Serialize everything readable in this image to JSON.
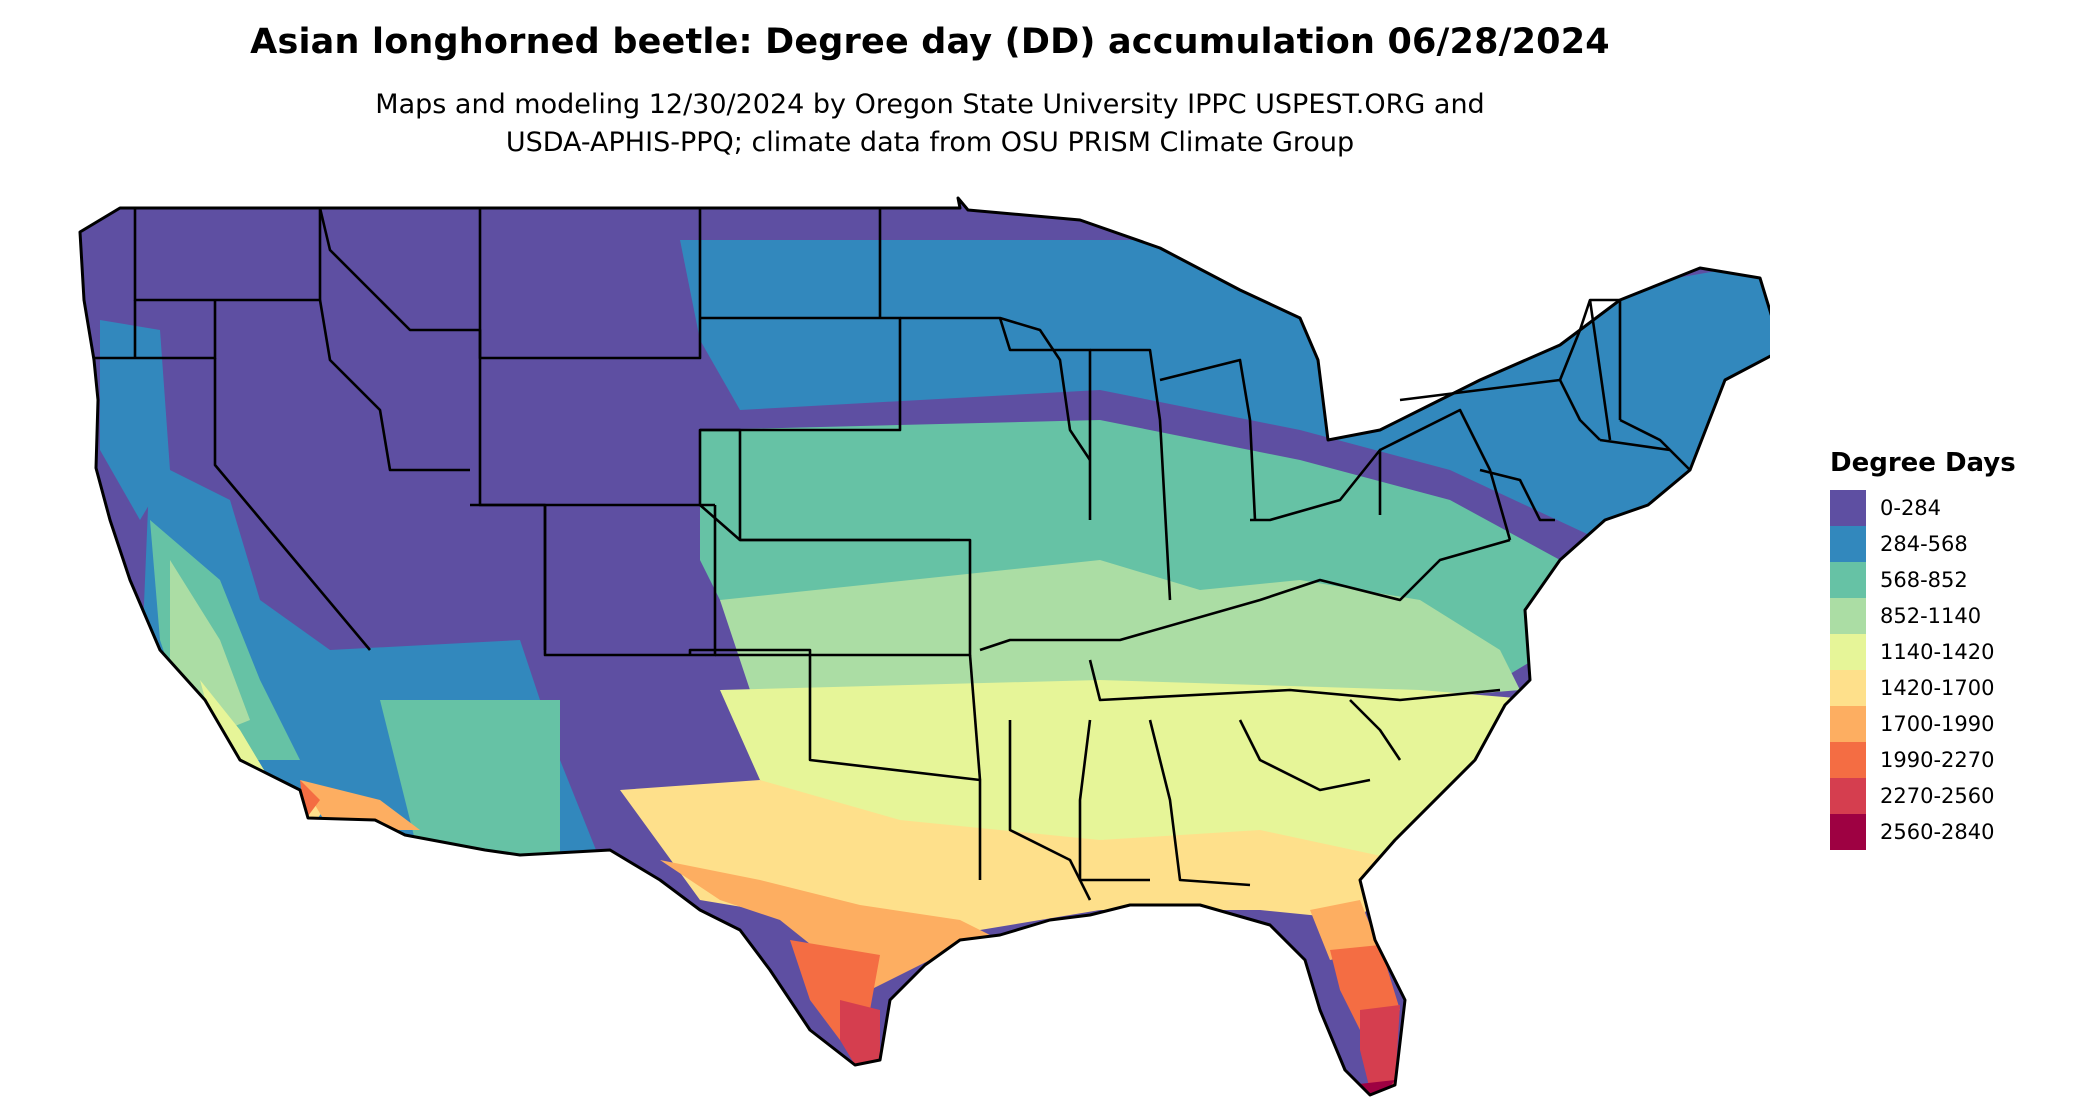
{
  "title": "Asian longhorned beetle: Degree day (DD) accumulation 06/28/2024",
  "subtitle_lines": [
    "Maps and modeling 12/30/2024 by Oregon State University IPPC USPEST.ORG and",
    "USDA-APHIS-PPQ; climate data from OSU PRISM Climate Group"
  ],
  "legend": {
    "title": "Degree Days",
    "items": [
      {
        "label": "0-284",
        "color": "#5e4fa2"
      },
      {
        "label": "284-568",
        "color": "#3288bd"
      },
      {
        "label": "568-852",
        "color": "#66c2a5"
      },
      {
        "label": "852-1140",
        "color": "#abdda4"
      },
      {
        "label": "1140-1420",
        "color": "#e6f598"
      },
      {
        "label": "1420-1700",
        "color": "#fee08b"
      },
      {
        "label": "1700-1990",
        "color": "#fdae61"
      },
      {
        "label": "1990-2270",
        "color": "#f46d43"
      },
      {
        "label": "2270-2560",
        "color": "#d53e4f"
      },
      {
        "label": "2560-2840",
        "color": "#9e0142"
      }
    ]
  },
  "map": {
    "region": "Contiguous United States",
    "background_color": "#ffffff",
    "border_color": "#000000"
  }
}
